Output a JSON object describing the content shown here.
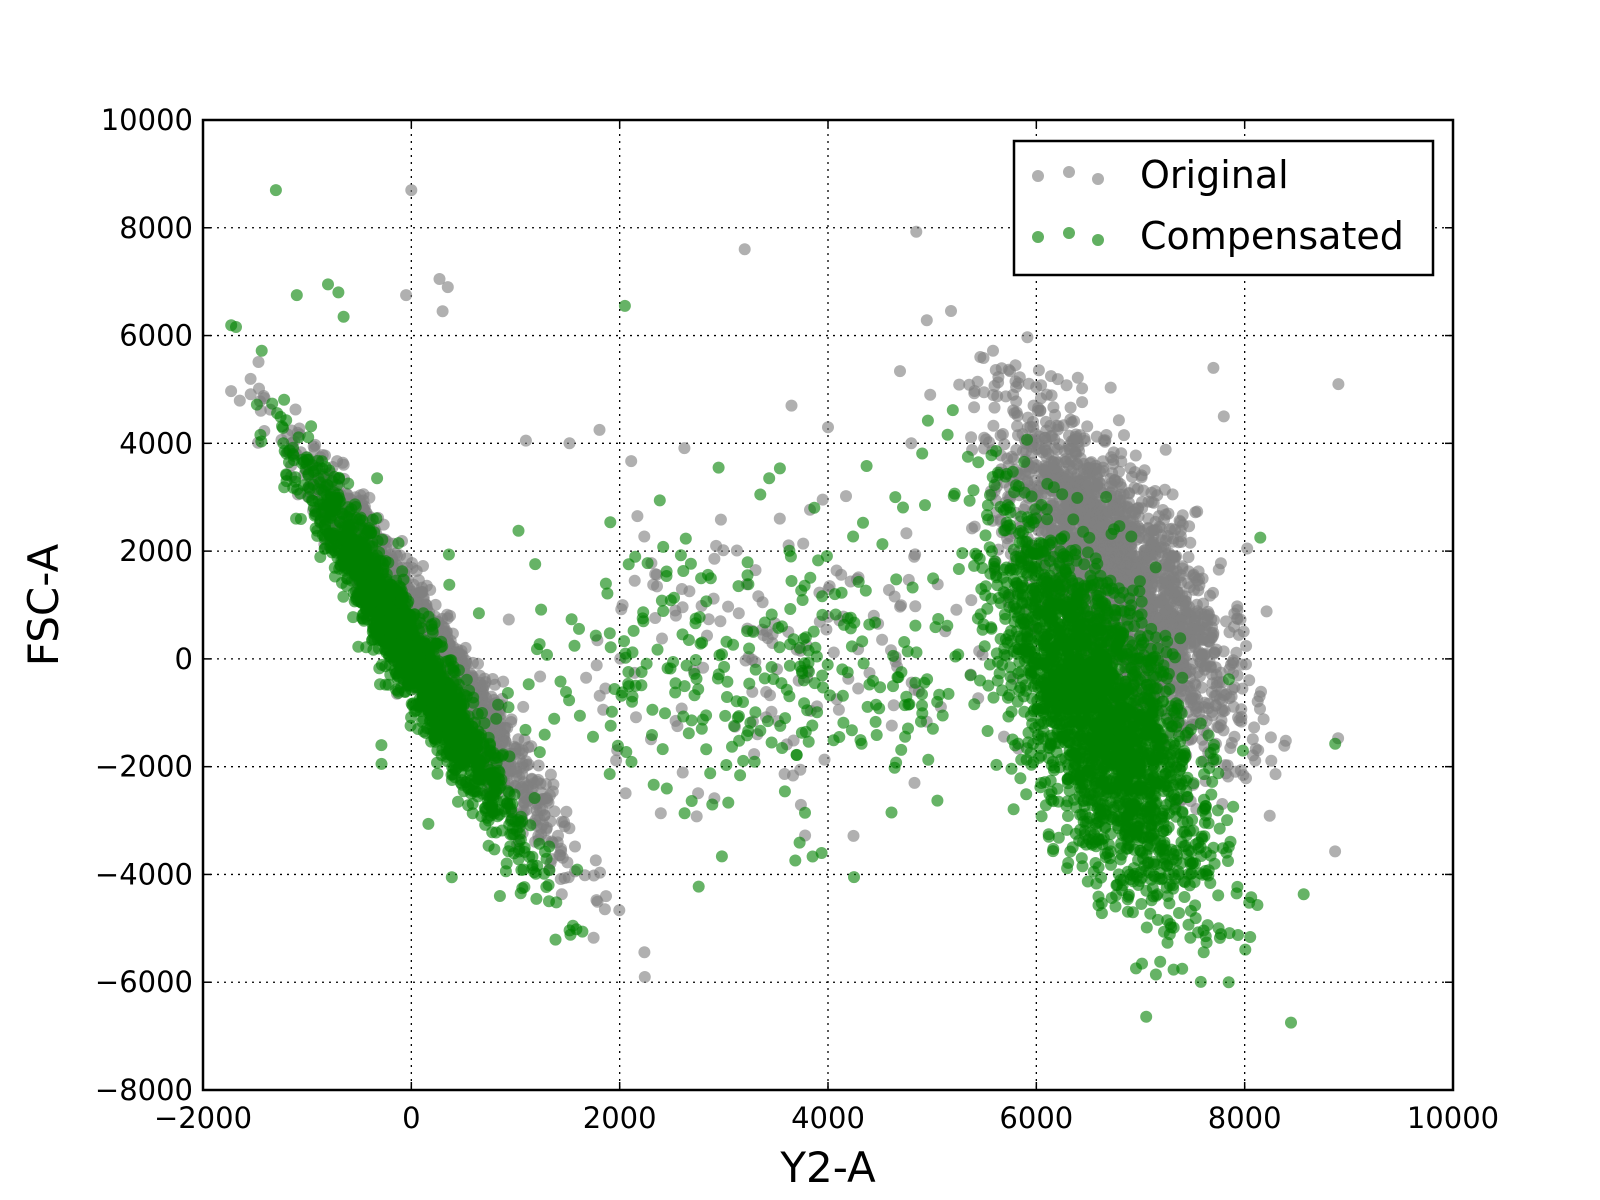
{
  "chart_data": {
    "type": "scatter",
    "title": "",
    "xlabel": "Y2-A",
    "ylabel": "FSC-A",
    "xlim": [
      -2000,
      10000
    ],
    "ylim": [
      -8000,
      10000
    ],
    "xticks": [
      -2000,
      0,
      2000,
      4000,
      6000,
      8000,
      10000
    ],
    "yticks": [
      -8000,
      -6000,
      -4000,
      -2000,
      0,
      2000,
      4000,
      6000,
      8000,
      10000
    ],
    "x_tick_labels": [
      "−2000",
      "0",
      "2000",
      "4000",
      "6000",
      "8000",
      "10000"
    ],
    "y_tick_labels": [
      "−8000",
      "−6000",
      "−4000",
      "−2000",
      "0",
      "2000",
      "4000",
      "6000",
      "8000",
      "10000"
    ],
    "grid": true,
    "legend_position": "top-right",
    "series": [
      {
        "name": "Original",
        "color": "#808080",
        "outliers": [
          [
            0,
            8700
          ],
          [
            3200,
            7600
          ],
          [
            -50,
            6750
          ],
          [
            270,
            7050
          ],
          [
            350,
            6900
          ],
          [
            300,
            6450
          ],
          [
            8900,
            5100
          ],
          [
            3650,
            4700
          ],
          [
            4000,
            4300
          ],
          [
            1100,
            4050
          ],
          [
            4800,
            4000
          ],
          [
            5800,
            5150
          ],
          [
            7800,
            4500
          ],
          [
            7700,
            5400
          ]
        ],
        "clusters": [
          {
            "center": [
              150,
              300
            ],
            "sd_along": 1650,
            "sd_across": 150,
            "slope": -3.0,
            "count": 1800
          },
          {
            "center": [
              6800,
              1500
            ],
            "sd_along": 1500,
            "sd_across": 380,
            "slope": -4.0,
            "count": 2200
          },
          {
            "center": [
              3300,
              0
            ],
            "sd_x": 1200,
            "sd_y": 1400,
            "count": 170
          }
        ]
      },
      {
        "name": "Compensated",
        "color": "#008000",
        "outliers": [
          [
            -1300,
            8700
          ],
          [
            -1100,
            6750
          ],
          [
            -800,
            6950
          ],
          [
            -700,
            6800
          ],
          [
            -650,
            6350
          ],
          [
            2050,
            6550
          ],
          [
            8150,
            2250
          ],
          [
            3350,
            3050
          ],
          [
            2950,
            3550
          ],
          [
            4250,
            -4050
          ],
          [
            1050,
            -4350
          ],
          [
            850,
            -4400
          ],
          [
            7750,
            -5000
          ]
        ],
        "clusters": [
          {
            "center": [
              0,
              100
            ],
            "sd_along": 1700,
            "sd_across": 140,
            "slope": -3.5,
            "count": 1800
          },
          {
            "center": [
              6600,
              -1000
            ],
            "sd_along": 1700,
            "sd_across": 380,
            "slope": -5.5,
            "count": 2400
          },
          {
            "center": [
              3300,
              -300
            ],
            "sd_x": 1300,
            "sd_y": 1400,
            "count": 320
          }
        ]
      }
    ]
  }
}
